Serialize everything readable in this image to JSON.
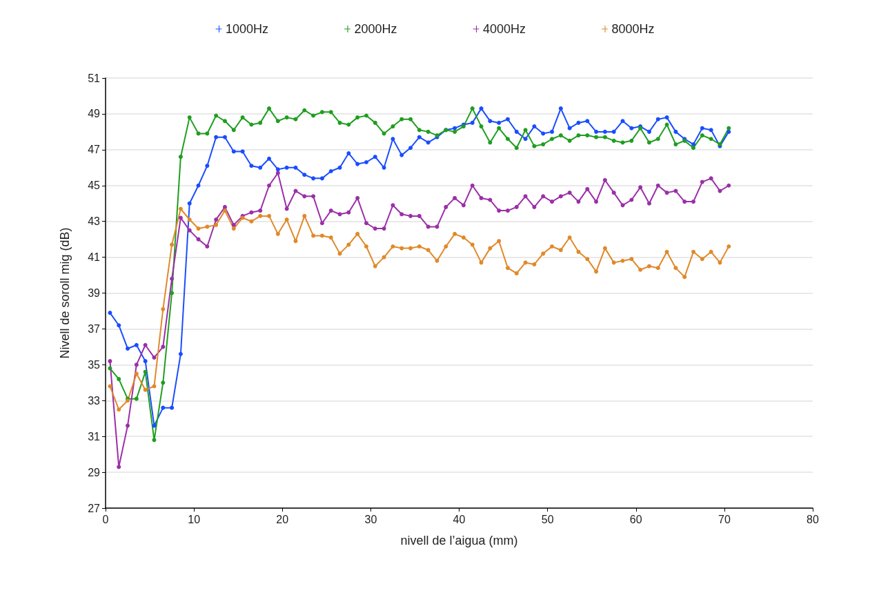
{
  "chart_data": {
    "type": "line",
    "xlabel": "nivell de l’aigua (mm)",
    "ylabel": "Nivell de soroll mig (dB)",
    "x": [
      0.5,
      1.5,
      2.5,
      3.5,
      4.5,
      5.5,
      6.5,
      7.5,
      8.5,
      9.5,
      10.5,
      11.5,
      12.5,
      13.5,
      14.5,
      15.5,
      16.5,
      17.5,
      18.5,
      19.5,
      20.5,
      21.5,
      22.5,
      23.5,
      24.5,
      25.5,
      26.5,
      27.5,
      28.5,
      29.5,
      30.5,
      31.5,
      32.5,
      33.5,
      34.5,
      35.5,
      36.5,
      37.5,
      38.5,
      39.5,
      40.5,
      41.5,
      42.5,
      43.5,
      44.5,
      45.5,
      46.5,
      47.5,
      48.5,
      49.5,
      50.5,
      51.5,
      52.5,
      53.5,
      54.5,
      55.5,
      56.5,
      57.5,
      58.5,
      59.5,
      60.5,
      61.5,
      62.5,
      63.5,
      64.5,
      65.5,
      66.5,
      67.5,
      68.5,
      69.5,
      70.5
    ],
    "series": [
      {
        "name": "1000Hz",
        "color": "#1a4dff",
        "values": [
          37.9,
          37.2,
          35.9,
          36.1,
          35.2,
          31.6,
          32.6,
          32.6,
          35.6,
          44.0,
          45.0,
          46.1,
          47.7,
          47.7,
          46.9,
          46.9,
          46.1,
          46.0,
          46.5,
          45.9,
          46.0,
          46.0,
          45.6,
          45.4,
          45.4,
          45.8,
          46.0,
          46.8,
          46.2,
          46.3,
          46.6,
          46.0,
          47.6,
          46.7,
          47.1,
          47.7,
          47.4,
          47.7,
          48.1,
          48.2,
          48.4,
          48.5,
          49.3,
          48.6,
          48.5,
          48.7,
          48.0,
          47.6,
          48.3,
          47.9,
          48.0,
          49.3,
          48.2,
          48.5,
          48.6,
          48.0,
          48.0,
          48.0,
          48.6,
          48.2,
          48.3,
          48.0,
          48.7,
          48.8,
          48.0,
          47.6,
          47.3,
          48.2,
          48.1,
          47.2,
          48.0
        ]
      },
      {
        "name": "2000Hz",
        "color": "#1f9e1f",
        "values": [
          34.8,
          34.2,
          33.1,
          33.1,
          34.6,
          30.8,
          34.0,
          39.0,
          46.6,
          48.8,
          47.9,
          47.9,
          48.9,
          48.6,
          48.1,
          48.8,
          48.4,
          48.5,
          49.3,
          48.6,
          48.8,
          48.7,
          49.2,
          48.9,
          49.1,
          49.1,
          48.5,
          48.4,
          48.8,
          48.9,
          48.5,
          47.9,
          48.3,
          48.7,
          48.7,
          48.1,
          48.0,
          47.8,
          48.1,
          48.0,
          48.3,
          49.3,
          48.3,
          47.4,
          48.2,
          47.6,
          47.1,
          48.1,
          47.2,
          47.3,
          47.6,
          47.8,
          47.5,
          47.8,
          47.8,
          47.7,
          47.7,
          47.5,
          47.4,
          47.5,
          48.2,
          47.4,
          47.6,
          48.4,
          47.3,
          47.5,
          47.1,
          47.8,
          47.6,
          47.3,
          48.2
        ]
      },
      {
        "name": "4000Hz",
        "color": "#9b2fa8",
        "values": [
          35.2,
          29.3,
          31.6,
          35.0,
          36.1,
          35.4,
          36.0,
          39.8,
          43.2,
          42.5,
          42.0,
          41.6,
          43.1,
          43.8,
          42.8,
          43.3,
          43.5,
          43.6,
          45.0,
          45.7,
          43.7,
          44.7,
          44.4,
          44.4,
          42.9,
          43.6,
          43.4,
          43.5,
          44.3,
          42.9,
          42.6,
          42.6,
          43.9,
          43.4,
          43.3,
          43.3,
          42.7,
          42.7,
          43.8,
          44.3,
          43.9,
          45.0,
          44.3,
          44.2,
          43.6,
          43.6,
          43.8,
          44.4,
          43.8,
          44.4,
          44.1,
          44.4,
          44.6,
          44.1,
          44.8,
          44.1,
          45.3,
          44.6,
          43.9,
          44.2,
          44.9,
          44.0,
          45.0,
          44.6,
          44.7,
          44.1,
          44.1,
          45.2,
          45.4,
          44.7,
          45.0
        ]
      },
      {
        "name": "8000Hz",
        "color": "#e0892a",
        "values": [
          33.8,
          32.5,
          33.0,
          34.5,
          33.6,
          33.8,
          38.1,
          41.7,
          43.7,
          43.1,
          42.6,
          42.7,
          42.8,
          43.6,
          42.6,
          43.2,
          43.0,
          43.3,
          43.3,
          42.3,
          43.1,
          41.9,
          43.3,
          42.2,
          42.2,
          42.1,
          41.2,
          41.7,
          42.3,
          41.6,
          40.5,
          41.0,
          41.6,
          41.5,
          41.5,
          41.6,
          41.4,
          40.8,
          41.6,
          42.3,
          42.1,
          41.7,
          40.7,
          41.5,
          41.9,
          40.4,
          40.1,
          40.7,
          40.6,
          41.2,
          41.6,
          41.4,
          42.1,
          41.3,
          40.9,
          40.2,
          41.5,
          40.7,
          40.8,
          40.9,
          40.3,
          40.5,
          40.4,
          41.3,
          40.4,
          39.9,
          41.3,
          40.9,
          41.3,
          40.7,
          41.6
        ]
      }
    ],
    "xlim": [
      0,
      80
    ],
    "xticks": [
      0,
      10,
      20,
      30,
      40,
      50,
      60,
      70,
      80
    ],
    "ylim": [
      27,
      51
    ],
    "yticks": [
      27,
      29,
      31,
      33,
      35,
      37,
      39,
      41,
      43,
      45,
      47,
      49,
      51
    ],
    "grid": "y",
    "legend": "top",
    "marker": "circle",
    "line_style": "solid"
  }
}
